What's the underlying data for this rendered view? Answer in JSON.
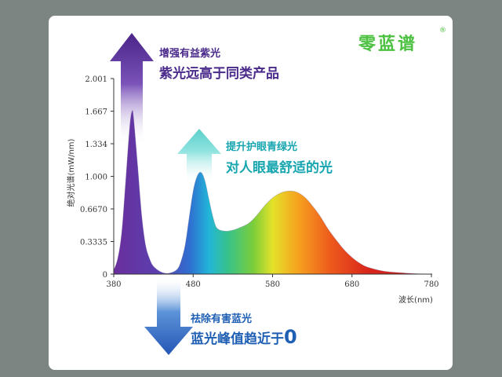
{
  "brand": {
    "name": "零蓝谱",
    "mark": "®"
  },
  "annotations": {
    "purple": {
      "line1": "增强有益紫光",
      "line2": "紫光远高于同类产品",
      "color": "#5b2fa0"
    },
    "teal": {
      "line1": "提升护眼青绿光",
      "line2": "对人眼最舒适的光",
      "color": "#5fd3d0"
    },
    "blue": {
      "line1": "祛除有害蓝光",
      "line2": "蓝光峰值趋近于",
      "zero": "0",
      "color": "#2b6cc4"
    }
  },
  "chart_data": {
    "type": "area",
    "ylabel": "绝对光谱(mW/nm)",
    "xlabel": "波长(nm)",
    "xlim": [
      380,
      780
    ],
    "ylim": [
      0,
      2.001
    ],
    "x_ticks": [
      380,
      480,
      580,
      680,
      780
    ],
    "x_tick_labels": [
      "380",
      "480",
      "580",
      "680",
      "780"
    ],
    "y_ticks": [
      0,
      0.3335,
      0.667,
      1.0,
      1.334,
      1.667,
      2.001
    ],
    "y_tick_labels": [
      "0",
      "0.3335",
      "0.6670",
      "1.000",
      "1.334",
      "1.667",
      "2.001"
    ],
    "grid": false,
    "series": [
      {
        "x": [
          380,
          385,
          390,
          395,
          400,
          403,
          405,
          410,
          415,
          420,
          425,
          430,
          440,
          450,
          460,
          465,
          470,
          475,
          480,
          485,
          490,
          495,
          500,
          505,
          510,
          520,
          530,
          540,
          550,
          560,
          570,
          580,
          590,
          600,
          610,
          620,
          630,
          640,
          650,
          660,
          670,
          680,
          690,
          700,
          720,
          740,
          760,
          780
        ],
        "y": [
          0.04,
          0.16,
          0.42,
          0.95,
          1.5,
          1.667,
          1.6,
          1.12,
          0.62,
          0.3,
          0.16,
          0.08,
          0.02,
          0.01,
          0.05,
          0.14,
          0.3,
          0.58,
          0.85,
          1.0,
          1.04,
          0.95,
          0.76,
          0.58,
          0.47,
          0.44,
          0.45,
          0.48,
          0.52,
          0.6,
          0.7,
          0.78,
          0.83,
          0.85,
          0.84,
          0.79,
          0.7,
          0.59,
          0.46,
          0.35,
          0.25,
          0.17,
          0.11,
          0.07,
          0.03,
          0.015,
          0.005,
          0.0
        ]
      }
    ]
  }
}
